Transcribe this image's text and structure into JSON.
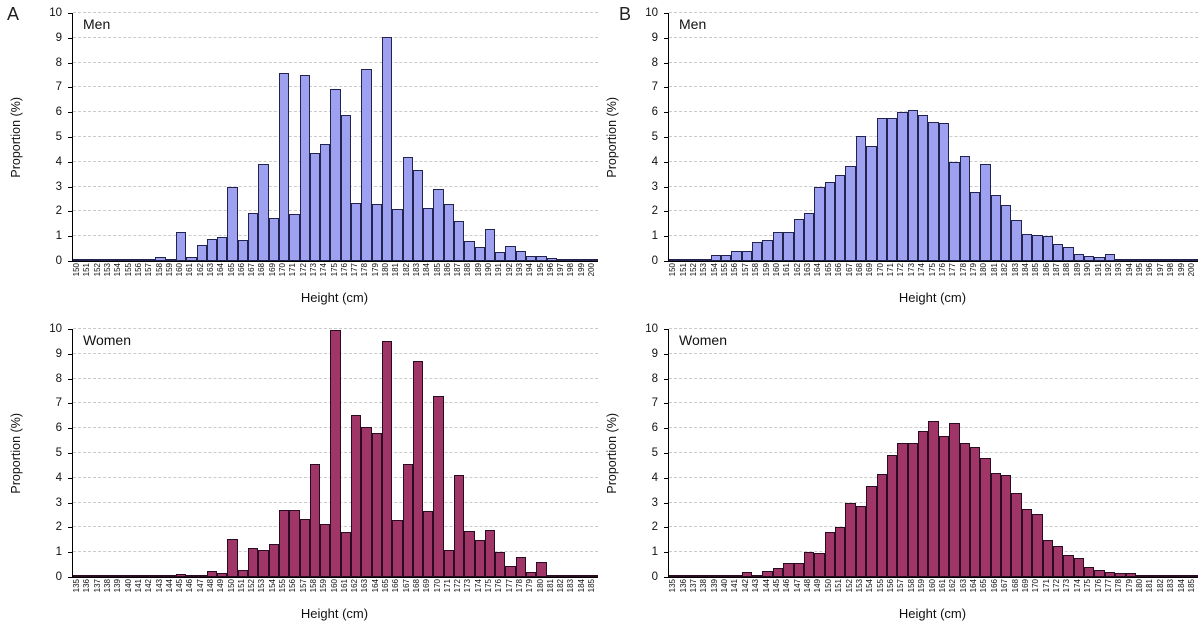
{
  "figure": {
    "panel_labels": {
      "a": "A",
      "b": "B"
    },
    "axis": {
      "xlabel": "Height (cm)",
      "ylabel": "Proportion (%)"
    },
    "colors": {
      "men_fill": "#9da1f0",
      "men_border": "#23234f",
      "women_fill": "#a03568",
      "women_border": "#2a0c22",
      "grid": "#cbcbcb",
      "axis_line": "#000000"
    }
  },
  "chart_data": [
    {
      "id": "a_men",
      "panel": "A",
      "type": "bar",
      "series_label": "Men",
      "xlabel": "Height (cm)",
      "ylabel": "Proportion (%)",
      "ylim": [
        0,
        10
      ],
      "yticks": [
        0,
        1,
        2,
        3,
        4,
        5,
        6,
        7,
        8,
        9,
        10
      ],
      "grid": "horizontal-dashed",
      "fill_key": "men",
      "categories": [
        150,
        151,
        152,
        153,
        154,
        155,
        156,
        157,
        158,
        159,
        160,
        161,
        162,
        163,
        164,
        165,
        166,
        167,
        168,
        169,
        170,
        171,
        172,
        173,
        174,
        175,
        176,
        177,
        178,
        179,
        180,
        181,
        182,
        183,
        184,
        185,
        186,
        187,
        188,
        189,
        190,
        191,
        192,
        193,
        194,
        195,
        196,
        197,
        198,
        199,
        200
      ],
      "values": [
        0.05,
        0.02,
        0.03,
        0.05,
        0.05,
        0.1,
        0.1,
        0.05,
        0.15,
        0.05,
        1.15,
        0.15,
        0.65,
        0.9,
        0.95,
        3.0,
        0.85,
        1.95,
        3.9,
        1.75,
        7.6,
        1.9,
        7.5,
        4.35,
        4.7,
        6.95,
        5.9,
        2.35,
        7.75,
        2.3,
        9.05,
        2.1,
        4.2,
        3.65,
        2.15,
        2.9,
        2.3,
        1.6,
        0.8,
        0.55,
        1.3,
        0.35,
        0.6,
        0.4,
        0.2,
        0.2,
        0.12,
        0.08,
        0.1,
        0.02,
        0.02
      ]
    },
    {
      "id": "b_men",
      "panel": "B",
      "type": "bar",
      "series_label": "Men",
      "xlabel": "Height (cm)",
      "ylabel": "Proportion (%)",
      "ylim": [
        0,
        10
      ],
      "yticks": [
        0,
        1,
        2,
        3,
        4,
        5,
        6,
        7,
        8,
        9,
        10
      ],
      "grid": "horizontal-dashed",
      "fill_key": "men",
      "categories": [
        150,
        151,
        152,
        153,
        154,
        155,
        156,
        157,
        158,
        159,
        160,
        161,
        162,
        163,
        164,
        165,
        166,
        167,
        168,
        169,
        170,
        171,
        172,
        173,
        174,
        175,
        176,
        177,
        178,
        179,
        180,
        181,
        182,
        183,
        184,
        185,
        186,
        187,
        188,
        189,
        190,
        191,
        192,
        193,
        194,
        195,
        196,
        197,
        198,
        199,
        200
      ],
      "values": [
        0.05,
        0.08,
        0.1,
        0.05,
        0.25,
        0.25,
        0.4,
        0.4,
        0.75,
        0.85,
        1.15,
        1.15,
        1.7,
        1.95,
        3.0,
        3.2,
        3.45,
        3.85,
        5.05,
        4.65,
        5.75,
        5.75,
        6.0,
        6.1,
        5.9,
        5.6,
        5.55,
        4.0,
        4.25,
        2.8,
        3.9,
        2.65,
        2.25,
        1.65,
        1.1,
        1.05,
        1.0,
        0.7,
        0.55,
        0.3,
        0.2,
        0.18,
        0.28,
        0.08,
        0.1,
        0.03,
        0.02,
        0.01,
        0.02,
        0.02,
        0.02
      ]
    },
    {
      "id": "a_women",
      "panel": "A",
      "type": "bar",
      "series_label": "Women",
      "xlabel": "Height (cm)",
      "ylabel": "Proportion (%)",
      "ylim": [
        0,
        10
      ],
      "yticks": [
        0,
        1,
        2,
        3,
        4,
        5,
        6,
        7,
        8,
        9,
        10
      ],
      "grid": "horizontal-dashed",
      "fill_key": "women",
      "categories": [
        135,
        136,
        137,
        138,
        139,
        140,
        141,
        142,
        143,
        144,
        145,
        146,
        147,
        148,
        149,
        150,
        151,
        152,
        153,
        154,
        155,
        156,
        157,
        158,
        159,
        160,
        161,
        162,
        163,
        164,
        165,
        166,
        167,
        168,
        169,
        170,
        171,
        172,
        173,
        174,
        175,
        176,
        177,
        178,
        179,
        180,
        181,
        182,
        183,
        184,
        185
      ],
      "values": [
        0.01,
        0.01,
        0.01,
        0.01,
        0.01,
        0.05,
        0.02,
        0.03,
        0.03,
        0.03,
        0.12,
        0.05,
        0.08,
        0.25,
        0.15,
        1.55,
        0.3,
        1.15,
        1.1,
        1.35,
        2.7,
        2.7,
        2.35,
        4.55,
        2.15,
        9.95,
        1.8,
        6.55,
        6.05,
        5.8,
        9.5,
        2.3,
        4.55,
        8.7,
        2.65,
        7.3,
        1.1,
        4.1,
        1.85,
        1.5,
        1.9,
        1.0,
        0.45,
        0.8,
        0.2,
        0.6,
        0.05,
        0.07,
        0.1,
        0.03,
        0.05
      ]
    },
    {
      "id": "b_women",
      "panel": "B",
      "type": "bar",
      "series_label": "Women",
      "xlabel": "Height (cm)",
      "ylabel": "Proportion (%)",
      "ylim": [
        0,
        10
      ],
      "yticks": [
        0,
        1,
        2,
        3,
        4,
        5,
        6,
        7,
        8,
        9,
        10
      ],
      "grid": "horizontal-dashed",
      "fill_key": "women",
      "categories": [
        135,
        136,
        137,
        138,
        139,
        140,
        141,
        142,
        143,
        144,
        145,
        146,
        147,
        148,
        149,
        150,
        151,
        152,
        153,
        154,
        155,
        156,
        157,
        158,
        159,
        160,
        161,
        162,
        163,
        164,
        165,
        166,
        167,
        168,
        169,
        170,
        171,
        172,
        173,
        174,
        175,
        176,
        177,
        178,
        179,
        180,
        181,
        182,
        183,
        184,
        185
      ],
      "values": [
        0.01,
        0.02,
        0.02,
        0.02,
        0.02,
        0.05,
        0.05,
        0.2,
        0.1,
        0.25,
        0.35,
        0.55,
        0.55,
        1.0,
        0.95,
        1.8,
        2.0,
        3.0,
        2.85,
        3.65,
        4.15,
        4.9,
        5.4,
        5.4,
        5.9,
        6.3,
        5.7,
        6.2,
        5.4,
        5.25,
        4.8,
        4.2,
        4.1,
        3.4,
        2.75,
        2.55,
        1.5,
        1.25,
        0.9,
        0.75,
        0.4,
        0.3,
        0.2,
        0.18,
        0.15,
        0.07,
        0.03,
        0.03,
        0.02,
        0.01,
        0.01
      ]
    }
  ]
}
